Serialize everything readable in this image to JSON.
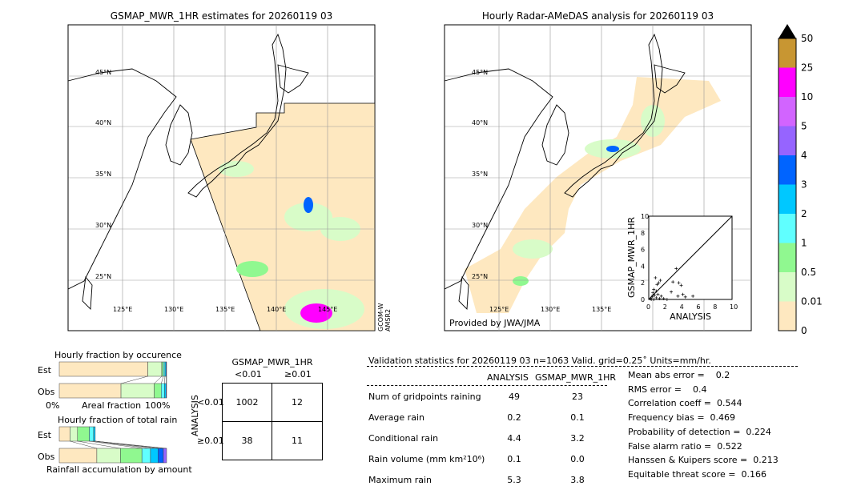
{
  "left_map": {
    "title": "GSMAP_MWR_1HR estimates for 20260119 03",
    "side_label": "GCOM-W\nAMSR2",
    "side_label_1": "GCOM-W",
    "side_label_2": "AMSR2"
  },
  "right_map": {
    "title": "Hourly Radar-AMeDAS analysis for 20260119 03",
    "credit": "Provided by JWA/JMA"
  },
  "lat_labels": [
    "45°N",
    "40°N",
    "35°N",
    "30°N",
    "25°N"
  ],
  "lon_labels": [
    "125°E",
    "130°E",
    "135°E",
    "140°E",
    "145°E"
  ],
  "colorbar": {
    "levels": [
      "0",
      "0.01",
      "0.5",
      "1",
      "2",
      "3",
      "4",
      "5",
      "10",
      "25",
      "50"
    ],
    "colors": [
      "#fee8c0",
      "#d8fcc8",
      "#90f890",
      "#60ffff",
      "#00c8ff",
      "#0064ff",
      "#9664ff",
      "#d264ff",
      "#ff00ff",
      "#c89632"
    ],
    "extend": "max"
  },
  "scatter": {
    "xlabel": "ANALYSIS",
    "ylabel": "GSMAP_MWR_1HR",
    "ticks": [
      "0",
      "2",
      "4",
      "6",
      "8",
      "10"
    ],
    "xlim": [
      0,
      10
    ],
    "ylim": [
      0,
      10
    ],
    "points": [
      [
        0.2,
        0.1
      ],
      [
        0.4,
        0.3
      ],
      [
        0.5,
        0.8
      ],
      [
        0.6,
        1.2
      ],
      [
        0.7,
        0.5
      ],
      [
        0.8,
        2.6
      ],
      [
        0.9,
        1.0
      ],
      [
        1.0,
        1.8
      ],
      [
        1.1,
        0.6
      ],
      [
        1.2,
        2.0
      ],
      [
        1.4,
        2.3
      ],
      [
        1.5,
        0.4
      ],
      [
        0.3,
        0.0
      ],
      [
        0.6,
        0.0
      ],
      [
        1.8,
        0.1
      ],
      [
        2.2,
        0.0
      ],
      [
        2.7,
        0.9
      ],
      [
        2.9,
        2.1
      ],
      [
        3.3,
        3.7
      ],
      [
        3.6,
        2.0
      ],
      [
        3.9,
        1.7
      ],
      [
        3.5,
        0.4
      ],
      [
        4.1,
        0.6
      ],
      [
        4.4,
        0.3
      ],
      [
        5.3,
        0.4
      ],
      [
        0.9,
        0.2
      ],
      [
        0.5,
        0.5
      ],
      [
        1.3,
        0.1
      ]
    ]
  },
  "occurrence": {
    "title": "Hourly fraction by occurence",
    "est_label": "Est",
    "obs_label": "Obs",
    "xmin": "0%",
    "xlabel": "Areal fraction",
    "xmax": "100%",
    "est": [
      0.825,
      0.13,
      0.015,
      0.015,
      0.01,
      0.005
    ],
    "obs": [
      0.575,
      0.31,
      0.065,
      0.03,
      0.015,
      0.005
    ]
  },
  "total_rain": {
    "title": "Hourly fraction of total rain",
    "est_label": "Est",
    "obs_label": "Obs",
    "xlabel": "Rainfall accumulation by amount",
    "est": [
      0.1,
      0.07,
      0.11,
      0.04,
      0.015
    ],
    "obs": [
      0.35,
      0.22,
      0.2,
      0.08,
      0.07,
      0.05,
      0.03
    ]
  },
  "contingency": {
    "col_title": "GSMAP_MWR_1HR",
    "col_labels": [
      "<0.01",
      "≥0.01"
    ],
    "row_title": "ANALYSIS",
    "row_labels": [
      "<0.01",
      "≥0.01"
    ],
    "cells": [
      [
        "1002",
        "12"
      ],
      [
        "38",
        "11"
      ]
    ]
  },
  "validation": {
    "header": "Validation statistics for 20260119 03  n=1063 Valid. grid=0.25˚ Units=mm/hr.",
    "col1": "ANALYSIS",
    "col2": "GSMAP_MWR_1HR",
    "rows": [
      {
        "label": "Num of gridpoints raining",
        "a": "49",
        "b": "23"
      },
      {
        "label": "Average rain",
        "a": "0.2",
        "b": "0.1"
      },
      {
        "label": "Conditional rain",
        "a": "4.4",
        "b": "3.2"
      },
      {
        "label": "Rain volume (mm km²10⁶)",
        "a": "0.1",
        "b": "0.0"
      },
      {
        "label": "Maximum rain",
        "a": "5.3",
        "b": "3.8"
      }
    ],
    "scores": [
      "Mean abs error =    0.2",
      "RMS error =    0.4",
      "Correlation coeff =  0.544",
      "Frequency bias =  0.469",
      "Probability of detection =  0.224",
      "False alarm ratio =  0.522",
      "Hanssen & Kuipers score =  0.213",
      "Equitable threat score =  0.166"
    ]
  }
}
